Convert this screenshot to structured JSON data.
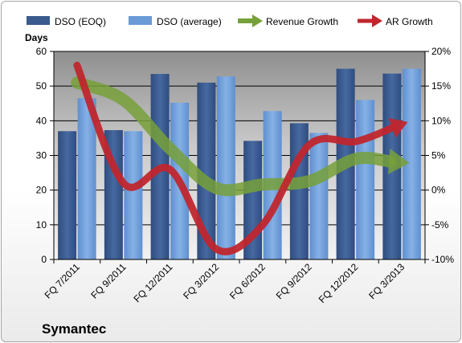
{
  "chart_data": {
    "type": "bar",
    "title": "Symantec",
    "ylabel": "Days",
    "categories": [
      "FQ 7/2011",
      "FQ 9/2011",
      "FQ 12/2011",
      "FQ 3/2012",
      "FQ 6/2012",
      "FQ 9/2012",
      "FQ 12/2012",
      "FQ 3/2013"
    ],
    "ylim": [
      0,
      60
    ],
    "yticks": [
      "0",
      "10",
      "20",
      "30",
      "40",
      "50",
      "60"
    ],
    "y2lim": [
      -10,
      20
    ],
    "y2ticks": [
      "-10%",
      "-5%",
      "0%",
      "5%",
      "10%",
      "15%",
      "20%"
    ],
    "series": [
      {
        "name": "DSO (EOQ)",
        "kind": "bar",
        "axis": "left",
        "color": "#3b5a8e",
        "values": [
          37,
          37.3,
          53.5,
          51,
          34.2,
          39.3,
          55,
          53.6
        ]
      },
      {
        "name": "DSO (average)",
        "kind": "bar",
        "axis": "left",
        "color": "#6b9bd6",
        "values": [
          46.5,
          37,
          45.2,
          52.8,
          42.8,
          36.5,
          46,
          55
        ]
      },
      {
        "name": "Revenue Growth",
        "kind": "arrow",
        "axis": "right",
        "color": "#77a03a",
        "values": [
          15.5,
          13,
          6,
          0.3,
          0.8,
          1.3,
          4.5,
          4
        ]
      },
      {
        "name": "AR Growth",
        "kind": "arrow",
        "axis": "right",
        "color": "#c0262e",
        "values": [
          18,
          1,
          3,
          -8.5,
          -5,
          6.5,
          7,
          9.5
        ]
      }
    ],
    "legend": "top",
    "grid": true
  }
}
